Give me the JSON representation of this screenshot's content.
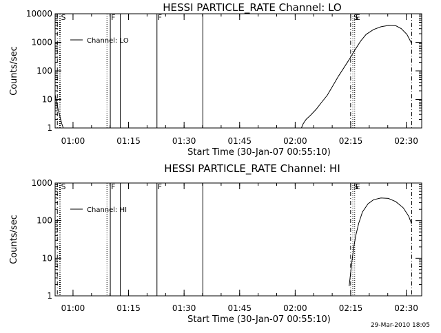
{
  "footer": {
    "timestamp": "29-Mar-2010 18:05"
  },
  "chart_data": [
    {
      "type": "line",
      "title": "HESSI PARTICLE_RATE Channel: LO",
      "xlabel": "Start Time (30-Jan-07 00:55:10)",
      "ylabel": "Counts/sec",
      "x_unit": "minutes after 00:55:10",
      "xlim": [
        0,
        99
      ],
      "ylim": [
        1,
        10000
      ],
      "yscale": "log",
      "x_ticks": [
        {
          "x": 4.83,
          "label": "01:00"
        },
        {
          "x": 19.83,
          "label": "01:15"
        },
        {
          "x": 34.83,
          "label": "01:30"
        },
        {
          "x": 49.83,
          "label": "01:45"
        },
        {
          "x": 64.83,
          "label": "02:00"
        },
        {
          "x": 79.83,
          "label": "02:15"
        },
        {
          "x": 94.83,
          "label": "02:30"
        }
      ],
      "y_ticks": [
        {
          "y": 1,
          "label": "1"
        },
        {
          "y": 10,
          "label": "10"
        },
        {
          "y": 100,
          "label": "100"
        },
        {
          "y": 1000,
          "label": "1000"
        },
        {
          "y": 10000,
          "label": "10000"
        }
      ],
      "legend": {
        "position": "top-left",
        "entries": [
          "Channel: LO"
        ]
      },
      "grid": false,
      "series": [
        {
          "name": "Channel: LO",
          "segments": [
            [
              [
                0.0,
                15
              ],
              [
                0.4,
                8
              ],
              [
                0.8,
                4.5
              ],
              [
                1.3,
                2.5
              ],
              [
                1.8,
                1.4
              ],
              [
                2.2,
                1.0
              ],
              [
                4.0,
                1.0
              ]
            ],
            [
              [
                66.5,
                1.0
              ],
              [
                67.0,
                1.4
              ],
              [
                67.8,
                2.0
              ],
              [
                69.0,
                2.8
              ],
              [
                70.5,
                4.5
              ],
              [
                72.0,
                8
              ],
              [
                73.5,
                14
              ],
              [
                75.0,
                30
              ],
              [
                76.5,
                65
              ],
              [
                78.0,
                130
              ],
              [
                79.5,
                260
              ],
              [
                81.0,
                550
              ],
              [
                82.5,
                1100
              ],
              [
                84.0,
                1900
              ],
              [
                86.0,
                2800
              ],
              [
                88.0,
                3500
              ],
              [
                90.0,
                3900
              ],
              [
                92.0,
                3800
              ],
              [
                93.5,
                3000
              ],
              [
                95.0,
                1900
              ],
              [
                96.3,
                900
              ]
            ]
          ]
        }
      ],
      "markers": [
        {
          "x": 0.6,
          "style": "dash-dot"
        },
        {
          "x": 1.2,
          "style": "dotted"
        },
        {
          "x": 1.4,
          "style": "dotted",
          "label": "S"
        },
        {
          "x": 14.0,
          "style": "dotted"
        },
        {
          "x": 14.9,
          "style": "solid",
          "label": "F"
        },
        {
          "x": 17.6,
          "style": "solid"
        },
        {
          "x": 27.5,
          "style": "solid",
          "label": "F"
        },
        {
          "x": 39.9,
          "style": "solid"
        },
        {
          "x": 79.8,
          "style": "dash-dot"
        },
        {
          "x": 80.4,
          "style": "dotted",
          "label": "S"
        },
        {
          "x": 80.9,
          "style": "dotted",
          "label": "E"
        },
        {
          "x": 96.3,
          "style": "dash-dot"
        }
      ]
    },
    {
      "type": "line",
      "title": "HESSI PARTICLE_RATE Channel: HI",
      "xlabel": "Start Time (30-Jan-07 00:55:10)",
      "ylabel": "Counts/sec",
      "x_unit": "minutes after 00:55:10",
      "xlim": [
        0,
        99
      ],
      "ylim": [
        1,
        1000
      ],
      "yscale": "log",
      "x_ticks": [
        {
          "x": 4.83,
          "label": "01:00"
        },
        {
          "x": 19.83,
          "label": "01:15"
        },
        {
          "x": 34.83,
          "label": "01:30"
        },
        {
          "x": 49.83,
          "label": "01:45"
        },
        {
          "x": 64.83,
          "label": "02:00"
        },
        {
          "x": 79.83,
          "label": "02:15"
        },
        {
          "x": 94.83,
          "label": "02:30"
        }
      ],
      "y_ticks": [
        {
          "y": 1,
          "label": "1"
        },
        {
          "y": 10,
          "label": "10"
        },
        {
          "y": 100,
          "label": "100"
        },
        {
          "y": 1000,
          "label": "1000"
        }
      ],
      "legend": {
        "position": "top-left",
        "entries": [
          "Channel: HI"
        ]
      },
      "grid": false,
      "series": [
        {
          "name": "Channel: HI",
          "segments": [
            [
              [
                79.4,
                1.8
              ],
              [
                79.8,
                4
              ],
              [
                80.2,
                9
              ],
              [
                80.6,
                18
              ],
              [
                81.2,
                40
              ],
              [
                82.0,
                85
              ],
              [
                83.0,
                170
              ],
              [
                84.5,
                280
              ],
              [
                86.0,
                360
              ],
              [
                88.0,
                400
              ],
              [
                90.0,
                390
              ],
              [
                92.0,
                320
              ],
              [
                94.0,
                220
              ],
              [
                95.5,
                130
              ],
              [
                96.3,
                80
              ]
            ]
          ]
        }
      ],
      "markers": [
        {
          "x": 0.6,
          "style": "dash-dot"
        },
        {
          "x": 1.2,
          "style": "dotted"
        },
        {
          "x": 1.4,
          "style": "dotted",
          "label": "S"
        },
        {
          "x": 14.0,
          "style": "dotted"
        },
        {
          "x": 14.9,
          "style": "solid",
          "label": "F"
        },
        {
          "x": 17.6,
          "style": "solid"
        },
        {
          "x": 27.5,
          "style": "solid",
          "label": "F"
        },
        {
          "x": 39.9,
          "style": "solid"
        },
        {
          "x": 79.8,
          "style": "dash-dot"
        },
        {
          "x": 80.4,
          "style": "dotted",
          "label": "S"
        },
        {
          "x": 80.9,
          "style": "dotted",
          "label": "E"
        },
        {
          "x": 96.3,
          "style": "dash-dot"
        }
      ]
    }
  ]
}
